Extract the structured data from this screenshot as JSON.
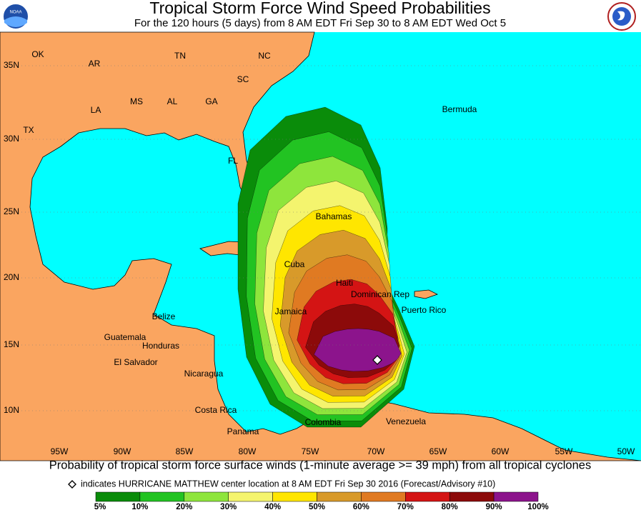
{
  "header": {
    "title": "Tropical Storm Force Wind Speed Probabilities",
    "subtitle": "For the 120 hours (5 days) from 8 AM EDT Fri Sep 30 to 8 AM EDT Wed Oct 5"
  },
  "map": {
    "place_labels": [
      "OK",
      "AR",
      "TN",
      "NC",
      "SC",
      "MS",
      "AL",
      "GA",
      "LA",
      "TX",
      "FL",
      "Bermuda",
      "Bahamas",
      "Cuba",
      "Haiti",
      "Dominican Rep",
      "Puerto Rico",
      "Jamaica",
      "Belize",
      "Guatemala",
      "Honduras",
      "El Salvador",
      "Nicaragua",
      "Costa Rica",
      "Panama",
      "Colombia",
      "Venezuela"
    ],
    "lat_labels": [
      "35N",
      "30N",
      "25N",
      "20N",
      "15N",
      "10N"
    ],
    "lon_labels": [
      "95W",
      "90W",
      "85W",
      "80W",
      "75W",
      "70W",
      "65W",
      "60W",
      "55W",
      "50W"
    ]
  },
  "caption": "Probability of tropical storm force surface winds (1-minute average >= 39 mph) from all tropical cyclones",
  "marker_note": "indicates HURRICANE MATTHEW center location at 8 AM EDT Fri Sep 30 2016 (Forecast/Advisory #10)",
  "legend": {
    "labels": [
      "5%",
      "10%",
      "20%",
      "30%",
      "40%",
      "50%",
      "60%",
      "70%",
      "80%",
      "90%",
      "100%"
    ],
    "colors": [
      "#0a8c0a",
      "#22c322",
      "#8ee53c",
      "#f4f46e",
      "#ffe600",
      "#d89a2a",
      "#e07a22",
      "#d41414",
      "#8c0a0a",
      "#8c148c"
    ]
  }
}
